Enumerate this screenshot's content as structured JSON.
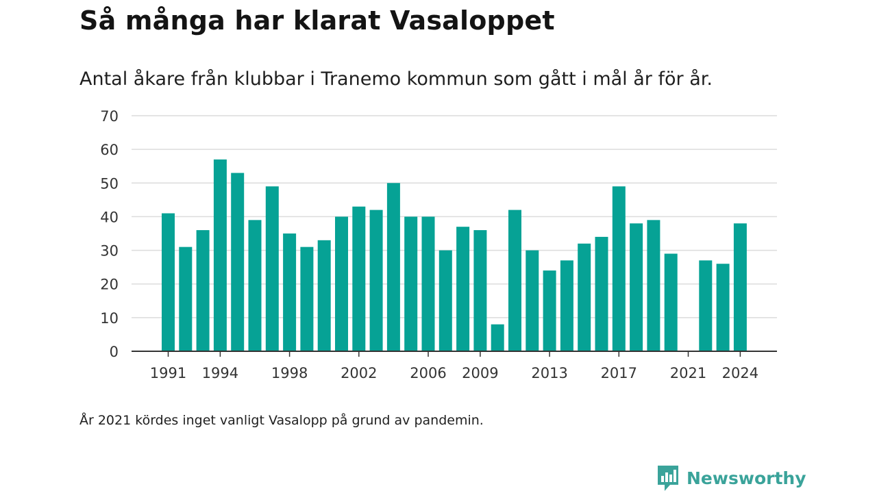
{
  "header": {
    "title": "Så många har klarat Vasaloppet",
    "subtitle": "Antal åkare från klubbar i Tranemo kommun som gått i mål år för år."
  },
  "footer": {
    "note": "År 2021 kördes inget vanligt Vasalopp på grund av pandemin.",
    "brand_name": "Newsworthy",
    "brand_icon": "bar-chart-speech-bubble-icon"
  },
  "colors": {
    "bar": "#06a295",
    "grid": "#dcdcdc",
    "axis": "#333333",
    "brand": "#3aa39a"
  },
  "chart_data": {
    "type": "bar",
    "categories": [
      "1991",
      "1992",
      "1993",
      "1994",
      "1995",
      "1996",
      "1997",
      "1998",
      "1999",
      "2000",
      "2001",
      "2002",
      "2003",
      "2004",
      "2005",
      "2006",
      "2007",
      "2008",
      "2009",
      "2010",
      "2011",
      "2012",
      "2013",
      "2014",
      "2015",
      "2016",
      "2017",
      "2018",
      "2019",
      "2020",
      "2021",
      "2022",
      "2023",
      "2024"
    ],
    "values": [
      41,
      31,
      36,
      57,
      53,
      39,
      49,
      35,
      31,
      33,
      40,
      43,
      42,
      50,
      40,
      40,
      30,
      37,
      36,
      8,
      42,
      30,
      24,
      27,
      32,
      34,
      49,
      38,
      39,
      29,
      null,
      27,
      26,
      38
    ],
    "xticks": [
      "1991",
      "1994",
      "1998",
      "2002",
      "2006",
      "2009",
      "2013",
      "2017",
      "2021",
      "2024"
    ],
    "yticks": [
      0,
      10,
      20,
      30,
      40,
      50,
      60,
      70
    ],
    "ylim": [
      0,
      70
    ],
    "grid": true,
    "xlabel": "",
    "ylabel": ""
  }
}
